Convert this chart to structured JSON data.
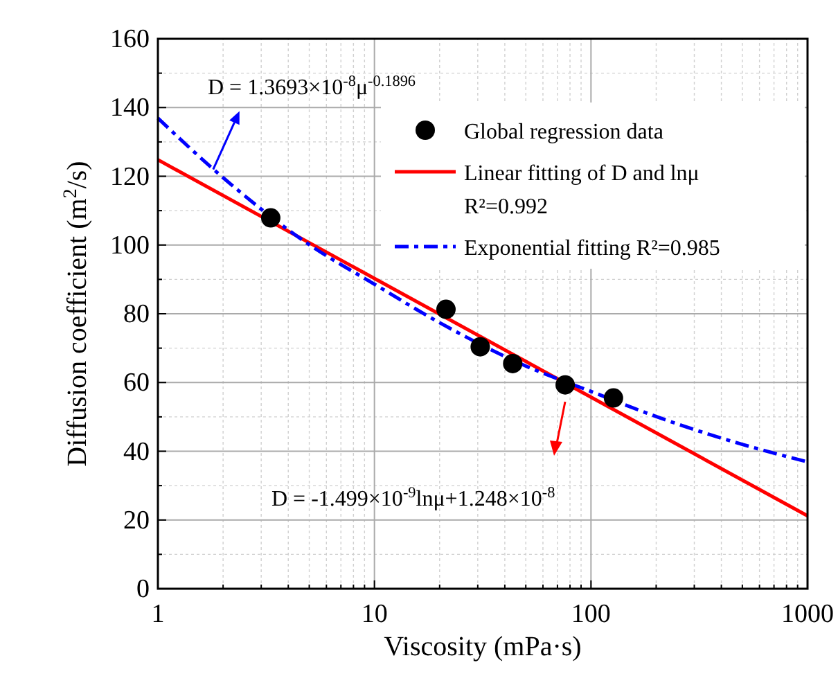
{
  "chart_data": {
    "type": "scatter",
    "xlabel": "Viscosity (mPa·s)",
    "ylabel": "Diffusion coefficient (m$^{2}$/s)",
    "log": "x",
    "xlim": [
      1,
      1000
    ],
    "xticks": [
      1,
      10,
      100,
      1000
    ],
    "ylim": [
      0,
      160
    ],
    "yticks": [
      0,
      20,
      40,
      60,
      80,
      100,
      120,
      140,
      160
    ],
    "grid": true,
    "legend": "top right",
    "annotations": [
      {
        "text": "D = 1.3693×10$^{-8}$μ$^{-0.1896}$",
        "x": 1.8,
        "y": 122
      },
      "D = -1.499×10$^{-9}$lnμ+1.248×10$^{-8}$"
    ],
    "series": [
      {
        "name": "Global regression data",
        "color": "#000000",
        "marker": "circle",
        "x": [
          3.32,
          21.4,
          30.8,
          43.5,
          76,
          127
        ],
        "values": [
          107.9,
          81.3,
          70.4,
          65.5,
          59.3,
          55.5
        ]
      },
      {
        "name": "Linear fitting of D and lnμ\nR²=0.992",
        "type": "line",
        "color": "#ff0000",
        "line_style": "solid",
        "marker": "none",
        "x": [
          1,
          1000
        ],
        "values": [
          124.8,
          21.2
        ]
      },
      {
        "name": "Exponential fitting R²=0.985",
        "type": "line",
        "color": "#0000ff",
        "line_style": "dashed",
        "marker": "none",
        "x": [
          1,
          2,
          5,
          10,
          20,
          50,
          100,
          200,
          500,
          1000
        ],
        "values": [
          136.9,
          119.6,
          100.1,
          88.6,
          77.4,
          64.8,
          57.4,
          50.1,
          42.0,
          36.9
        ]
      }
    ]
  }
}
